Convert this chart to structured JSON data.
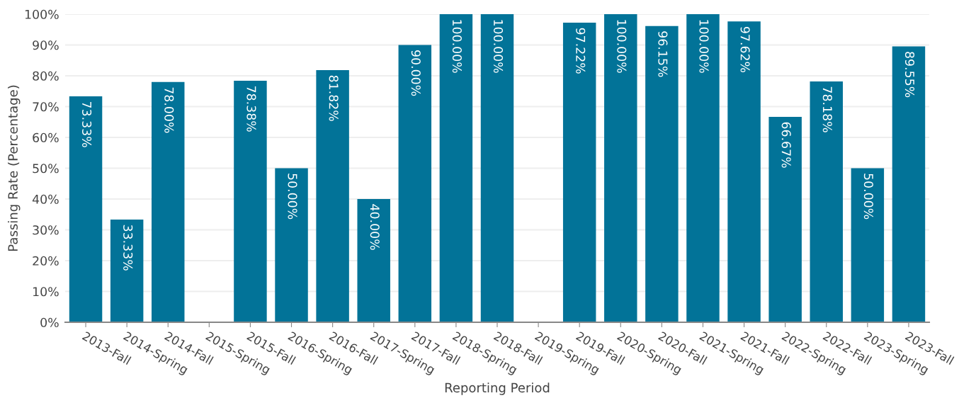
{
  "chart_data": {
    "type": "bar",
    "xlabel": "Reporting Period",
    "ylabel": "Passing Rate (Percentage)",
    "categories": [
      "2013-Fall",
      "2014-Spring",
      "2014-Fall",
      "2015-Spring",
      "2015-Fall",
      "2016-Spring",
      "2016-Fall",
      "2017-Spring",
      "2017-Fall",
      "2018-Spring",
      "2018-Fall",
      "2019-Spring",
      "2019-Fall",
      "2020-Spring",
      "2020-Fall",
      "2021-Spring",
      "2021-Fall",
      "2022-Spring",
      "2022-Fall",
      "2023-Spring",
      "2023-Fall"
    ],
    "values": [
      73.33,
      33.33,
      78.0,
      null,
      78.38,
      50.0,
      81.82,
      40.0,
      90.0,
      100.0,
      100.0,
      null,
      97.22,
      100.0,
      96.15,
      100.0,
      97.62,
      66.67,
      78.18,
      50.0,
      89.55
    ],
    "value_labels": [
      "73.33%",
      "33.33%",
      "78.00%",
      null,
      "78.38%",
      "50.00%",
      "81.82%",
      "40.00%",
      "90.00%",
      "100.00%",
      "100.00%",
      null,
      "97.22%",
      "100.00%",
      "96.15%",
      "100.00%",
      "97.62%",
      "66.67%",
      "78.18%",
      "50.00%",
      "89.55%"
    ],
    "color": "#027398",
    "ylim": [
      0,
      100
    ],
    "yticks": [
      {
        "value": 0,
        "label": "0%"
      },
      {
        "value": 10,
        "label": "10%"
      },
      {
        "value": 20,
        "label": "20%"
      },
      {
        "value": 30,
        "label": "30%"
      },
      {
        "value": 40,
        "label": "40%"
      },
      {
        "value": 50,
        "label": "50%"
      },
      {
        "value": 60,
        "label": "60%"
      },
      {
        "value": 70,
        "label": "70%"
      },
      {
        "value": 80,
        "label": "80%"
      },
      {
        "value": 90,
        "label": "90%"
      },
      {
        "value": 100,
        "label": "100%"
      }
    ],
    "grid": "y",
    "legend": false
  }
}
